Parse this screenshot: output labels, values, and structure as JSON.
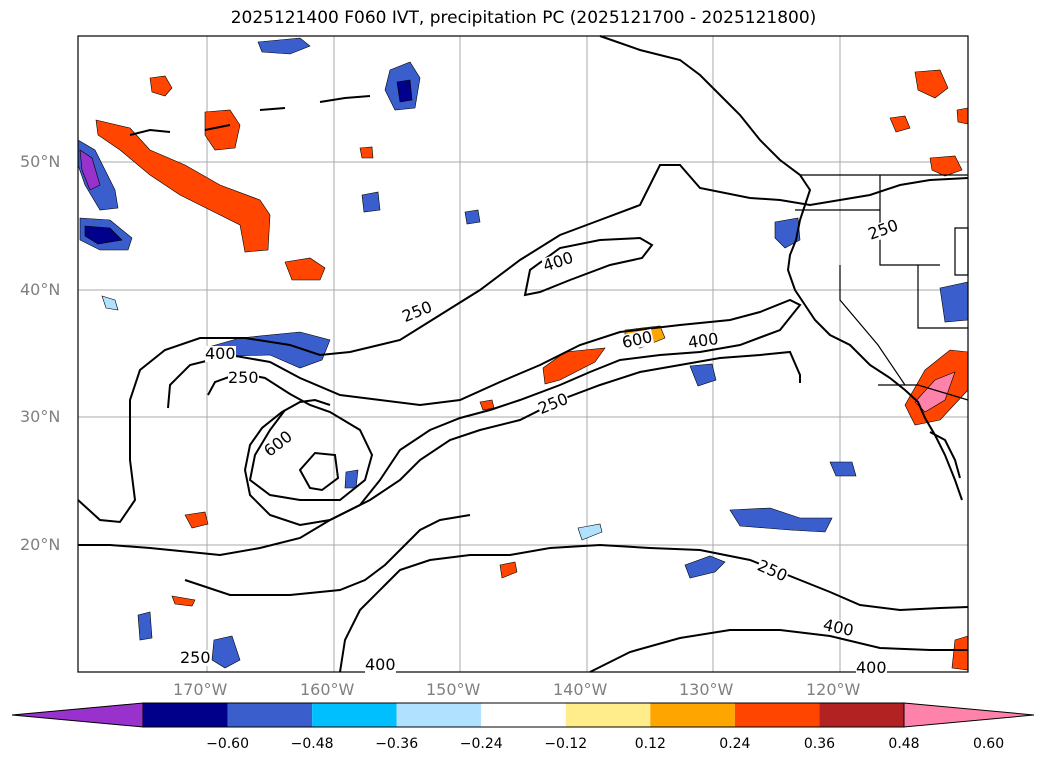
{
  "title": "2025121400 F060 IVT, precipitation PC (2025121700 - 2025121800)",
  "latitude_labels": [
    "50°N",
    "40°N",
    "30°N",
    "20°N"
  ],
  "longitude_labels": [
    "170°W",
    "160°W",
    "150°W",
    "140°W",
    "130°W",
    "120°W"
  ],
  "contour_labels": [
    "250",
    "400",
    "600",
    "400",
    "250",
    "600",
    "250",
    "400",
    "250",
    "400",
    "250",
    "400",
    "400",
    "250"
  ],
  "colorbar": {
    "tick_labels": [
      "−0.60",
      "−0.48",
      "−0.36",
      "−0.24",
      "−0.12",
      "0.12",
      "0.24",
      "0.36",
      "0.48",
      "0.60"
    ],
    "colors": [
      "#9932cc",
      "#00008b",
      "#3a5fcd",
      "#00bfff",
      "#b0e2ff",
      "#ffffff",
      "#ffec8b",
      "#ffa500",
      "#ff4500",
      "#b22222",
      "#ff82ab"
    ]
  }
}
